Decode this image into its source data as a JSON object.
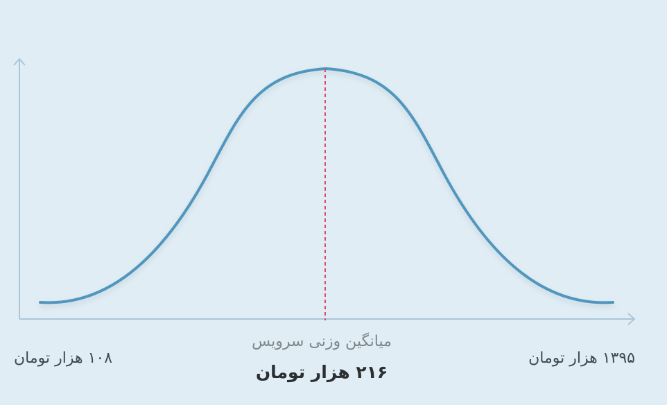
{
  "chart_data": {
    "type": "line",
    "title": "",
    "xlabel": "",
    "ylabel": "",
    "grid": false,
    "curve_color": "#5196bd",
    "axis_color": "#a9c7d9",
    "mean_line_color": "#e0476b",
    "x_min_label": "۱۰۸ هزار تومان",
    "x_max_label": "۱۳۹۵ هزار تومان",
    "mean_caption": "میانگین وزنی سرویس",
    "mean_value_label": "۲۱۶ هزار تومان",
    "curve_shape": "bell",
    "mean_position_fraction": 0.5
  }
}
